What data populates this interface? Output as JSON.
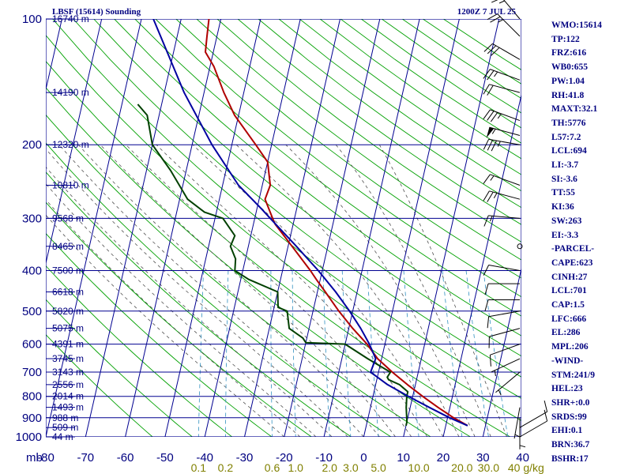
{
  "chart_data": {
    "type": "line",
    "title": "LBSF (15614) Sounding",
    "valid_time": "1200Z  7 JUL 25",
    "pressure_axis_label": "mb",
    "pressure_ticks": [
      100,
      200,
      300,
      400,
      500,
      600,
      700,
      800,
      900,
      1000
    ],
    "temp_ticks": [
      -80,
      -70,
      -60,
      -50,
      -40,
      -30,
      -20,
      -10,
      0,
      10,
      20,
      30,
      40
    ],
    "mixing_ratio_unit": "g/kg",
    "mixing_ratio_labels": [
      "0.1",
      "0.2",
      "0.6",
      "1.0",
      "2.0",
      "3.0",
      "5.0",
      "10.0",
      "20.0",
      "30.0",
      "40"
    ],
    "height_labels": [
      {
        "p": 100,
        "label": "16740 m"
      },
      {
        "p": 150,
        "label": "14190 m"
      },
      {
        "p": 200,
        "label": "12320 m"
      },
      {
        "p": 250,
        "label": "10810 m"
      },
      {
        "p": 300,
        "label": "9568 m"
      },
      {
        "p": 350,
        "label": "8465 m"
      },
      {
        "p": 400,
        "label": "7500 m"
      },
      {
        "p": 450,
        "label": "6618 m"
      },
      {
        "p": 500,
        "label": "5820 m"
      },
      {
        "p": 550,
        "label": "5075 m"
      },
      {
        "p": 600,
        "label": "4391 m"
      },
      {
        "p": 650,
        "label": "3745 m"
      },
      {
        "p": 700,
        "label": "3143 m"
      },
      {
        "p": 750,
        "label": "2556 m"
      },
      {
        "p": 800,
        "label": "2014 m"
      },
      {
        "p": 850,
        "label": "1493 m"
      },
      {
        "p": 900,
        "label": "988 m"
      },
      {
        "p": 950,
        "label": "509 m"
      },
      {
        "p": 1000,
        "label": "44 m"
      }
    ],
    "series": [
      {
        "role": "temperature",
        "color": "#b00000",
        "points": [
          [
            940,
            25.5
          ],
          [
            920,
            23.5
          ],
          [
            900,
            21.5
          ],
          [
            850,
            17.0
          ],
          [
            800,
            12.5
          ],
          [
            750,
            8.0
          ],
          [
            700,
            3.5
          ],
          [
            650,
            -1.0
          ],
          [
            600,
            -4.5
          ],
          [
            550,
            -9.0
          ],
          [
            500,
            -13.5
          ],
          [
            450,
            -18.0
          ],
          [
            420,
            -21.0
          ],
          [
            400,
            -23.0
          ],
          [
            350,
            -29.0
          ],
          [
            310,
            -34.5
          ],
          [
            300,
            -35.5
          ],
          [
            270,
            -38.5
          ],
          [
            250,
            -38.0
          ],
          [
            220,
            -40.0
          ],
          [
            200,
            -44.0
          ],
          [
            170,
            -51.0
          ],
          [
            150,
            -55.0
          ],
          [
            130,
            -59.0
          ],
          [
            120,
            -62.0
          ],
          [
            110,
            -62.5
          ],
          [
            100,
            -63.0
          ]
        ]
      },
      {
        "role": "dewpoint",
        "color": "#004000",
        "points": [
          [
            940,
            10.0
          ],
          [
            920,
            10.0
          ],
          [
            850,
            9.0
          ],
          [
            800,
            8.5
          ],
          [
            780,
            8.5
          ],
          [
            750,
            6.0
          ],
          [
            730,
            3.0
          ],
          [
            720,
            2.5
          ],
          [
            700,
            3.0
          ],
          [
            650,
            -3.5
          ],
          [
            600,
            -10.0
          ],
          [
            595,
            -20.0
          ],
          [
            580,
            -21.0
          ],
          [
            550,
            -25.0
          ],
          [
            500,
            -26.5
          ],
          [
            490,
            -29.0
          ],
          [
            450,
            -30.0
          ],
          [
            420,
            -38.0
          ],
          [
            400,
            -42.0
          ],
          [
            375,
            -42.5
          ],
          [
            350,
            -44.5
          ],
          [
            330,
            -44.0
          ],
          [
            300,
            -48.0
          ],
          [
            290,
            -53.0
          ],
          [
            270,
            -58.0
          ],
          [
            230,
            -64.0
          ],
          [
            200,
            -70.0
          ],
          [
            170,
            -73.0
          ],
          [
            160,
            -76.0
          ]
        ]
      },
      {
        "role": "parcel",
        "color": "#0000a0",
        "points": [
          [
            940,
            25.5
          ],
          [
            900,
            20.5
          ],
          [
            850,
            14.8
          ],
          [
            800,
            8.9
          ],
          [
            750,
            3.0
          ],
          [
            700,
            -2.0
          ],
          [
            701,
            -2.0
          ],
          [
            650,
            -1.5
          ],
          [
            600,
            -3.9
          ],
          [
            550,
            -7.0
          ],
          [
            500,
            -10.8
          ],
          [
            450,
            -15.4
          ],
          [
            400,
            -21.0
          ],
          [
            350,
            -27.9
          ],
          [
            300,
            -36.1
          ],
          [
            286,
            -38.6
          ],
          [
            250,
            -46.0
          ],
          [
            200,
            -55.0
          ],
          [
            150,
            -65.0
          ],
          [
            100,
            -77.0
          ]
        ]
      }
    ],
    "wind_barbs": [
      {
        "p": 100,
        "dir": 320,
        "spd": 25
      },
      {
        "p": 110,
        "dir": 315,
        "spd": 25
      },
      {
        "p": 125,
        "dir": 300,
        "spd": 30
      },
      {
        "p": 140,
        "dir": 290,
        "spd": 25
      },
      {
        "p": 150,
        "dir": 285,
        "spd": 20
      },
      {
        "p": 175,
        "dir": 290,
        "spd": 35
      },
      {
        "p": 190,
        "dir": 285,
        "spd": 55
      },
      {
        "p": 200,
        "dir": 280,
        "spd": 35
      },
      {
        "p": 250,
        "dir": 290,
        "spd": 15
      },
      {
        "p": 270,
        "dir": 285,
        "spd": 25
      },
      {
        "p": 300,
        "dir": 275,
        "spd": 15
      },
      {
        "p": 350,
        "dir": 0,
        "spd": 0
      },
      {
        "p": 400,
        "dir": 280,
        "spd": 10
      },
      {
        "p": 430,
        "dir": 270,
        "spd": 10
      },
      {
        "p": 470,
        "dir": 270,
        "spd": 10
      },
      {
        "p": 500,
        "dir": 260,
        "spd": 10
      },
      {
        "p": 550,
        "dir": 255,
        "spd": 10
      },
      {
        "p": 600,
        "dir": 250,
        "spd": 10
      },
      {
        "p": 650,
        "dir": 245,
        "spd": 5
      },
      {
        "p": 700,
        "dir": 230,
        "spd": 5
      },
      {
        "p": 850,
        "dir": 190,
        "spd": 5
      },
      {
        "p": 900,
        "dir": 180,
        "spd": 5
      },
      {
        "p": 950,
        "dir": 60,
        "spd": 10
      },
      {
        "p": 1000,
        "dir": 60,
        "spd": 10
      }
    ],
    "stats": [
      "WMO:15614",
      "TP:122",
      "FRZ:616",
      "WB0:655",
      "PW:1.04",
      "RH:41.8",
      "MAXT:32.1",
      "TH:5776",
      "L57:7.2",
      "LCL:694",
      "LI:-3.7",
      "SI:-3.6",
      "TT:55",
      "KI:36",
      "SW:263",
      "EI:-3.3",
      "-PARCEL-",
      "CAPE:623",
      "CINH:27",
      "LCL:701",
      "CAP:1.5",
      "LFC:666",
      "EL:286",
      "MPL:206",
      "-WIND-",
      "STM:241/9",
      "HEL:23",
      "SHR+:0.0",
      "SRDS:99",
      "EHI:0.1",
      "BRN:36.7",
      "BSHR:17"
    ]
  },
  "colors": {
    "grid": "#000090",
    "dry_adiabat": "#00a000",
    "moist_adiabat": "#505050",
    "mixing_ratio": "#3090c0",
    "barb": "#000000"
  }
}
